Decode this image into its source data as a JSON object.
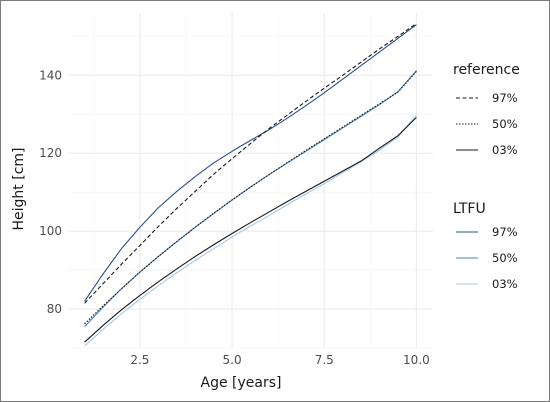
{
  "chart_data": {
    "type": "line",
    "xlabel": "Age [years]",
    "ylabel": "Height [cm]",
    "xlim": [
      0.55,
      10.45
    ],
    "ylim": [
      70,
      156
    ],
    "xticks": [
      2.5,
      5.0,
      7.5,
      10.0
    ],
    "xtick_labels": [
      "2.5",
      "5.0",
      "7.5",
      "10.0"
    ],
    "yticks": [
      80,
      100,
      120,
      140
    ],
    "ytick_labels": [
      "80",
      "100",
      "120",
      "140"
    ],
    "grid": true,
    "legend_placement": "right",
    "legends": [
      {
        "title": "reference",
        "entries": [
          {
            "label": "97%",
            "color": "#1a1a1a",
            "dash": "4,2.5"
          },
          {
            "label": "50%",
            "color": "#1a1a1a",
            "dash": "1.5,1.5"
          },
          {
            "label": "03%",
            "color": "#1a1a1a",
            "dash": ""
          }
        ]
      },
      {
        "title": "LTFU",
        "entries": [
          {
            "label": "97%",
            "color": "#2d4f8e",
            "dash": ""
          },
          {
            "label": "50%",
            "color": "#4a7fc0",
            "dash": ""
          },
          {
            "label": "03%",
            "color": "#a8c8e8",
            "dash": ""
          }
        ]
      }
    ],
    "series": [
      {
        "name": "reference 97%",
        "color": "#1a1a1a",
        "dash": "4,2.5",
        "x": [
          1,
          1.5,
          2,
          2.5,
          3,
          3.5,
          4,
          4.5,
          5,
          5.5,
          6,
          6.5,
          7,
          7.5,
          8,
          8.5,
          9,
          9.5,
          10
        ],
        "y": [
          81.5,
          86.5,
          91.5,
          96.3,
          101.2,
          105.8,
          110.2,
          114.6,
          118.6,
          122.5,
          126.3,
          129.8,
          133.3,
          136.7,
          140.0,
          143.4,
          146.8,
          150.0,
          153.3
        ]
      },
      {
        "name": "reference 50%",
        "color": "#1a1a1a",
        "dash": "1.5,1.5",
        "x": [
          1,
          1.5,
          2,
          2.5,
          3,
          3.5,
          4,
          4.5,
          5,
          5.5,
          6,
          6.5,
          7,
          7.5,
          8,
          8.5,
          9,
          9.5,
          10
        ],
        "y": [
          76.2,
          80.8,
          85.2,
          89.5,
          93.5,
          97.3,
          101.0,
          104.6,
          108.0,
          111.3,
          114.5,
          117.6,
          120.7,
          123.7,
          126.7,
          129.7,
          132.7,
          135.7,
          141.0
        ]
      },
      {
        "name": "reference 03%",
        "color": "#1a1a1a",
        "dash": "",
        "x": [
          1,
          1.5,
          2,
          2.5,
          3,
          3.5,
          4,
          4.5,
          5,
          5.5,
          6,
          6.5,
          7,
          7.5,
          8,
          8.5,
          9,
          9.5,
          10
        ],
        "y": [
          71.5,
          75.8,
          79.8,
          83.5,
          87.0,
          90.3,
          93.5,
          96.5,
          99.4,
          102.2,
          104.9,
          107.6,
          110.2,
          112.8,
          115.4,
          118.0,
          121.3,
          124.5,
          129.2
        ]
      },
      {
        "name": "LTFU 97%",
        "color": "#2d4f8e",
        "dash": "",
        "x": [
          1,
          1.5,
          2,
          2.5,
          3,
          3.5,
          4,
          4.5,
          5,
          5.5,
          6,
          6.5,
          7,
          7.5,
          8,
          8.5,
          9,
          9.5,
          10
        ],
        "y": [
          82.0,
          89.0,
          95.5,
          101.0,
          106.0,
          110.2,
          114.0,
          117.5,
          120.5,
          123.3,
          126.0,
          129.0,
          132.2,
          135.5,
          139.0,
          142.5,
          146.0,
          149.5,
          153.0
        ]
      },
      {
        "name": "LTFU 50%",
        "color": "#4a7fc0",
        "dash": "",
        "x": [
          1,
          1.5,
          2,
          2.5,
          3,
          3.5,
          4,
          4.5,
          5,
          5.5,
          6,
          6.5,
          7,
          7.5,
          8,
          8.5,
          9,
          9.5,
          10
        ],
        "y": [
          75.5,
          80.5,
          85.2,
          89.5,
          93.5,
          97.3,
          101.0,
          104.5,
          108.0,
          111.3,
          114.5,
          117.5,
          120.5,
          123.5,
          126.5,
          129.5,
          132.5,
          135.8,
          141.2
        ]
      },
      {
        "name": "LTFU 03%",
        "color": "#a8c8e8",
        "dash": "",
        "x": [
          1,
          1.5,
          2,
          2.5,
          3,
          3.5,
          4,
          4.5,
          5,
          5.5,
          6,
          6.5,
          7,
          7.5,
          8,
          8.5,
          9,
          9.5,
          10
        ],
        "y": [
          70.5,
          74.8,
          78.8,
          82.5,
          86.0,
          89.3,
          92.5,
          95.5,
          98.5,
          101.3,
          104.0,
          106.8,
          109.5,
          112.2,
          115.0,
          117.8,
          120.8,
          124.2,
          129.8
        ]
      }
    ]
  }
}
